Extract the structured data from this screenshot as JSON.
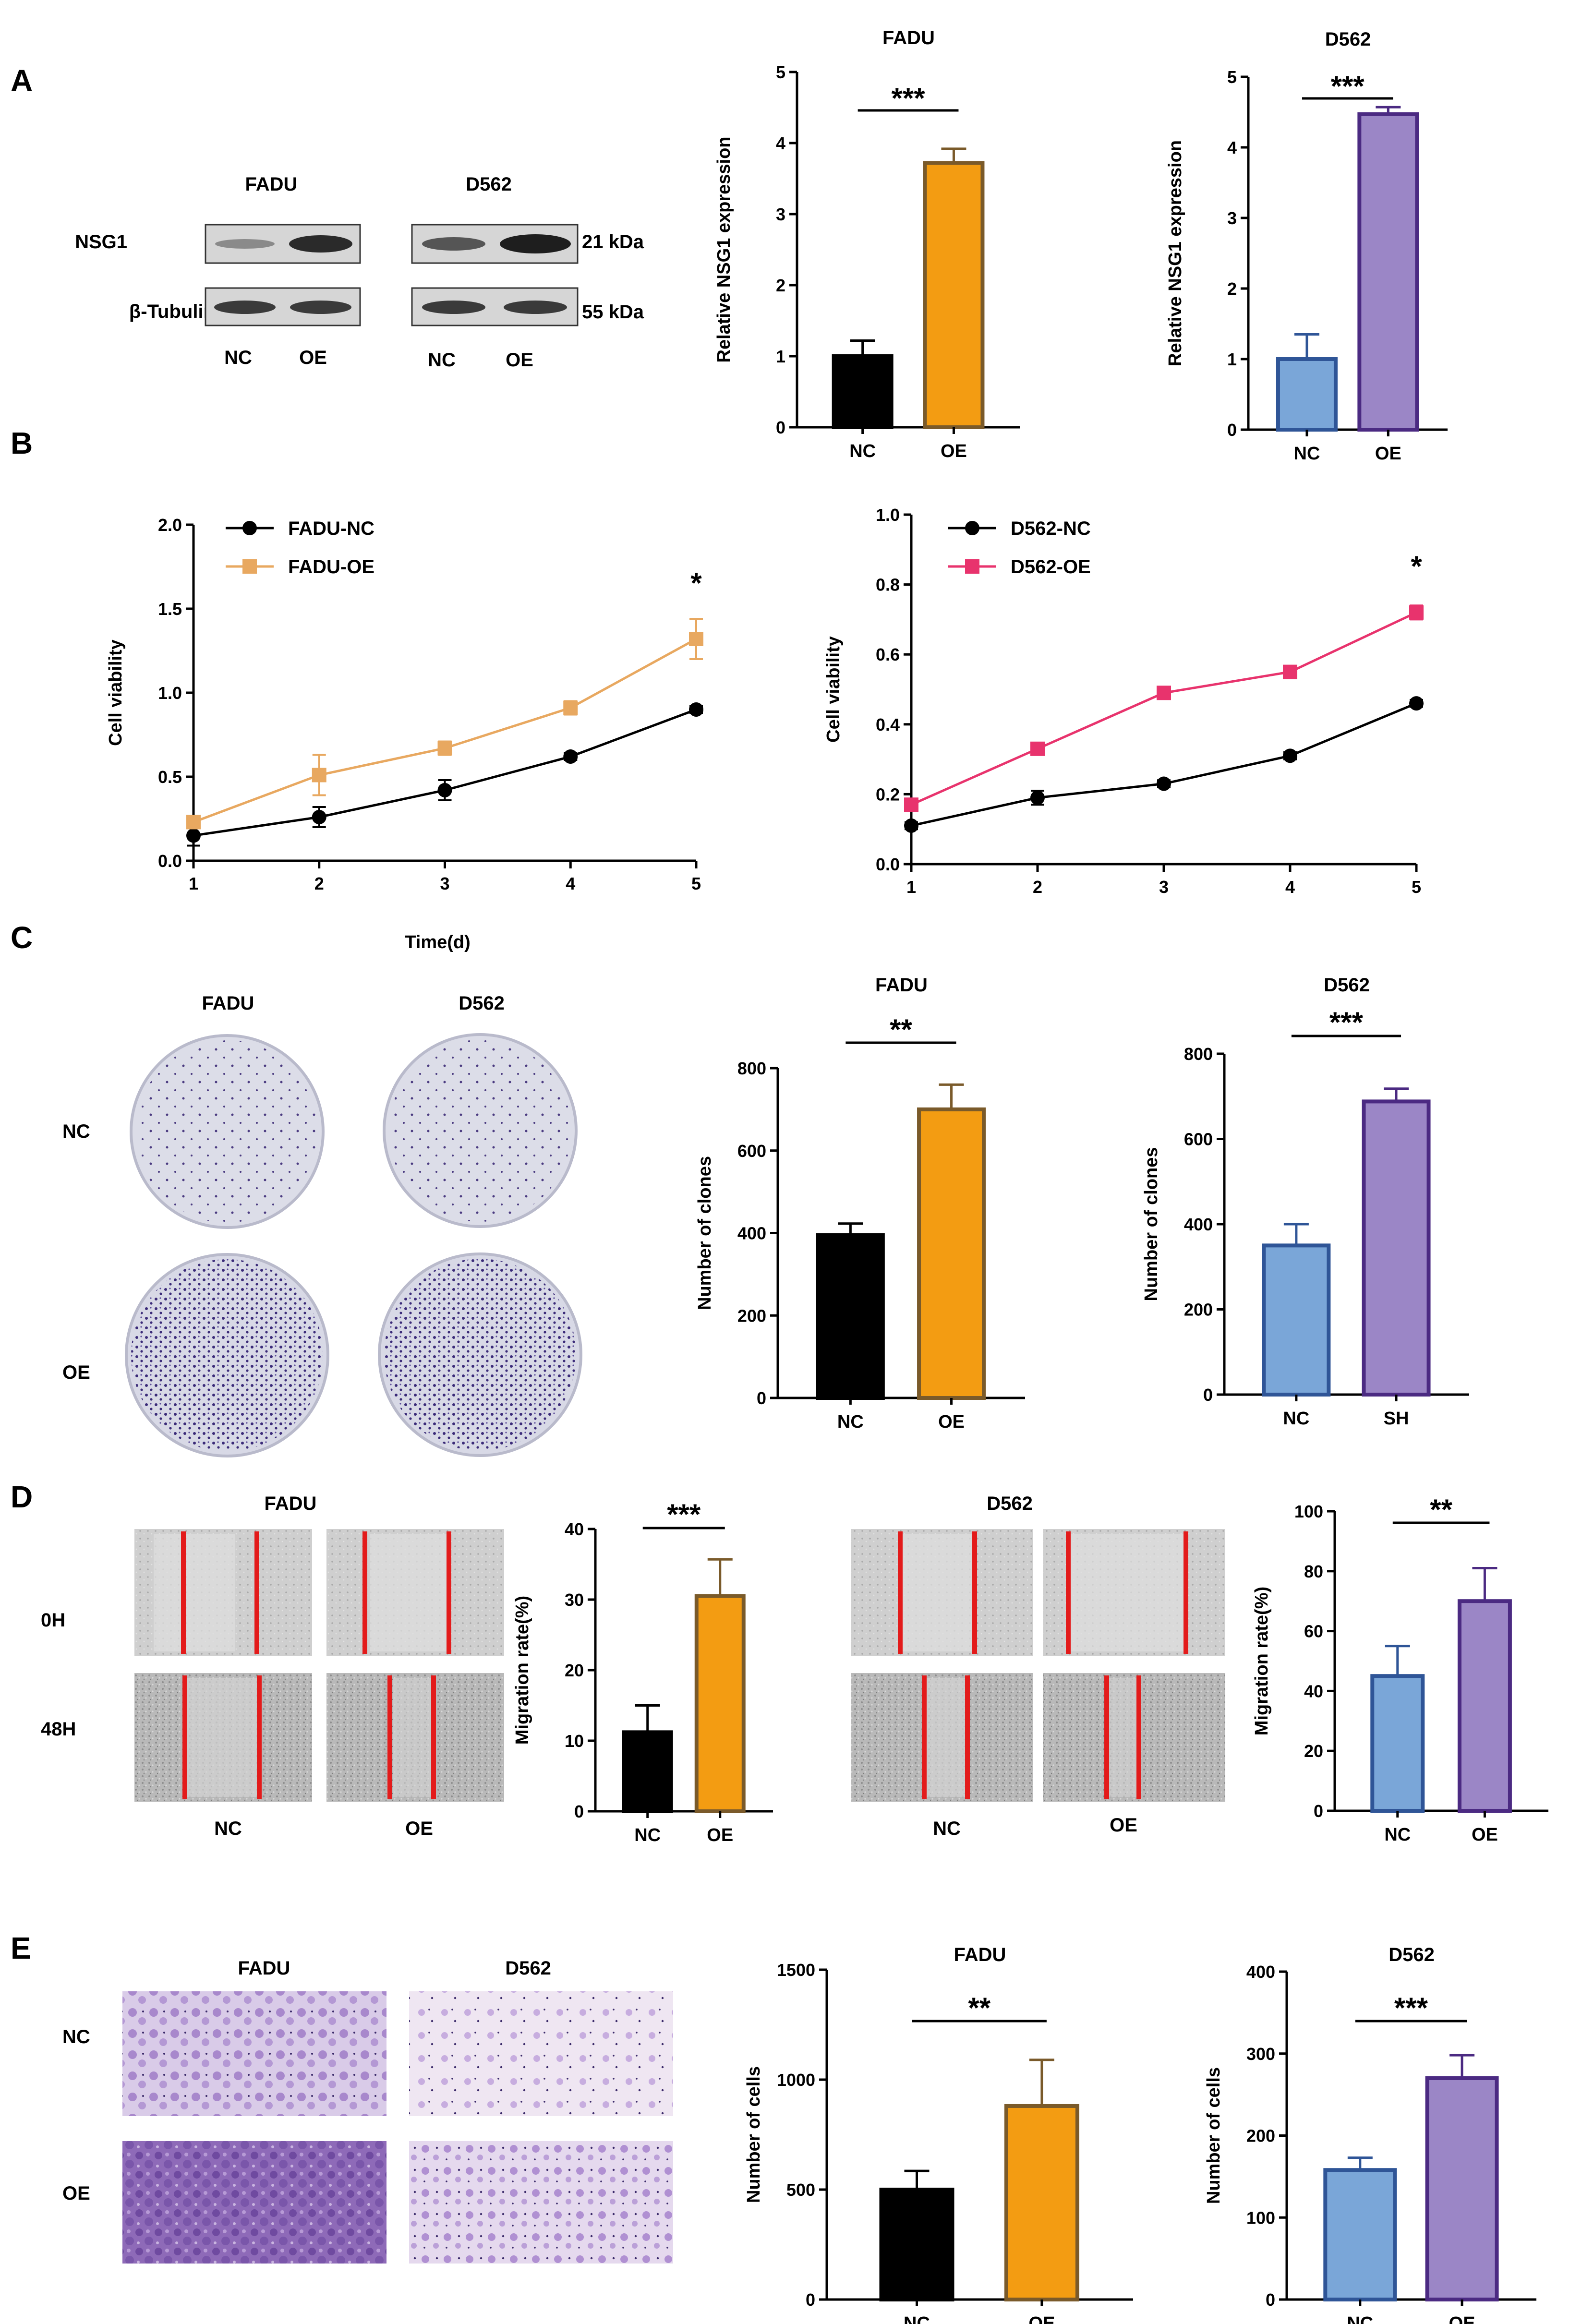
{
  "panels": {
    "A": "A",
    "B": "B",
    "C": "C",
    "D": "D",
    "E": "E"
  },
  "western_blot": {
    "lanes_left_title": "FADU",
    "lanes_right_title": "D562",
    "rows": [
      "NSG1",
      "β-Tubulin"
    ],
    "sizes": [
      "21 kDa",
      "55 kDa"
    ],
    "lane_labels": [
      "NC",
      "OE"
    ]
  },
  "images": {
    "colony": {
      "col_titles": [
        "FADU",
        "D562"
      ],
      "row_labels": [
        "NC",
        "OE"
      ]
    },
    "wound_fadu": {
      "title": "FADU",
      "row_labels": [
        "0H",
        "48H"
      ],
      "col_labels": [
        "NC",
        "OE"
      ]
    },
    "wound_d562": {
      "title": "D562",
      "col_labels": [
        "NC",
        "OE"
      ]
    },
    "transwell": {
      "col_titles": [
        "FADU",
        "D562"
      ],
      "row_labels": [
        "NC",
        "OE"
      ]
    }
  },
  "colors": {
    "black": "#000000",
    "orange": "#f39c12",
    "blue": "#7aa6d8",
    "blue_edge": "#2f5597",
    "purple": "#9b86c6",
    "purple_edge": "#4b2a82",
    "tan": "#e8a860",
    "pink": "#e8336d",
    "orange_edge": "#7a5a2a"
  },
  "chart_data": [
    {
      "id": "a1",
      "type": "bar",
      "title": "FADU",
      "ylabel": "Relative NSG1 expression",
      "categories": [
        "NC",
        "OE"
      ],
      "values": [
        1.0,
        3.72
      ],
      "errors": [
        0.22,
        0.2
      ],
      "ylim": [
        0,
        5
      ],
      "yticks": [
        "0",
        "1",
        "2",
        "3",
        "4",
        "5"
      ],
      "significance": "***"
    },
    {
      "id": "a2",
      "type": "bar",
      "title": "D562",
      "ylabel": "Relative NSG1 expression",
      "categories": [
        "NC",
        "OE"
      ],
      "values": [
        1.0,
        4.47
      ],
      "errors": [
        0.35,
        0.1
      ],
      "ylim": [
        0,
        5
      ],
      "yticks": [
        "0",
        "1",
        "2",
        "3",
        "4",
        "5"
      ],
      "significance": "***"
    },
    {
      "id": "b1",
      "type": "line",
      "title": "",
      "xlabel": "Time(d)",
      "ylabel": "Cell viability",
      "x": [
        1,
        2,
        3,
        4,
        5
      ],
      "xticks": [
        "1",
        "2",
        "3",
        "4",
        "5"
      ],
      "ylim": [
        0,
        2.0
      ],
      "yticks": [
        "0.0",
        "0.5",
        "1.0",
        "1.5",
        "2.0"
      ],
      "annotation": "*",
      "series": [
        {
          "name": "FADU-NC",
          "values": [
            0.15,
            0.26,
            0.42,
            0.62,
            0.9
          ],
          "errors": [
            0.06,
            0.06,
            0.06,
            0.02,
            0.02
          ]
        },
        {
          "name": "FADU-OE",
          "values": [
            0.23,
            0.51,
            0.67,
            0.91,
            1.32
          ],
          "errors": [
            0.03,
            0.12,
            0.04,
            0.04,
            0.12
          ]
        }
      ]
    },
    {
      "id": "b2",
      "type": "line",
      "title": "",
      "xlabel": "",
      "ylabel": "Cell viability",
      "x": [
        1,
        2,
        3,
        4,
        5
      ],
      "xticks": [
        "1",
        "2",
        "3",
        "4",
        "5"
      ],
      "ylim": [
        0,
        1.0
      ],
      "yticks": [
        "0.0",
        "0.2",
        "0.4",
        "0.6",
        "0.8",
        "1.0"
      ],
      "annotation": "*",
      "series": [
        {
          "name": "D562-NC",
          "values": [
            0.11,
            0.19,
            0.23,
            0.31,
            0.46
          ],
          "errors": [
            0.01,
            0.02,
            0.01,
            0.01,
            0.01
          ]
        },
        {
          "name": "D562-OE",
          "values": [
            0.17,
            0.33,
            0.49,
            0.55,
            0.72
          ],
          "errors": [
            0.01,
            0.01,
            0.01,
            0.01,
            0.02
          ]
        }
      ]
    },
    {
      "id": "c1",
      "type": "bar",
      "title": "FADU",
      "ylabel": "Number of clones",
      "categories": [
        "NC",
        "OE"
      ],
      "values": [
        395,
        700
      ],
      "errors": [
        28,
        60
      ],
      "ylim": [
        0,
        800
      ],
      "yticks": [
        "0",
        "200",
        "400",
        "600",
        "800"
      ],
      "significance": "**"
    },
    {
      "id": "c2",
      "type": "bar",
      "title": "D562",
      "ylabel": "Number of clones",
      "categories": [
        "NC",
        "SH"
      ],
      "values": [
        350,
        688
      ],
      "errors": [
        50,
        30
      ],
      "ylim": [
        0,
        800
      ],
      "yticks": [
        "0",
        "200",
        "400",
        "600",
        "800"
      ],
      "significance": "***"
    },
    {
      "id": "d1",
      "type": "bar",
      "title": "",
      "ylabel": "Migration rate(%)",
      "categories": [
        "NC",
        "OE"
      ],
      "values": [
        11.2,
        30.5
      ],
      "errors": [
        3.8,
        5.2
      ],
      "ylim": [
        0,
        40
      ],
      "yticks": [
        "0",
        "10",
        "20",
        "30",
        "40"
      ],
      "significance": "***"
    },
    {
      "id": "d2",
      "type": "bar",
      "title": "",
      "ylabel": "Migration rate(%)",
      "categories": [
        "NC",
        "OE"
      ],
      "values": [
        45,
        70
      ],
      "errors": [
        10,
        11
      ],
      "ylim": [
        0,
        100
      ],
      "yticks": [
        "0",
        "20",
        "40",
        "60",
        "80",
        "100"
      ],
      "significance": "**"
    },
    {
      "id": "e1",
      "type": "bar",
      "title": "FADU",
      "ylabel": "Number of cells",
      "categories": [
        "NC",
        "OE"
      ],
      "values": [
        500,
        880
      ],
      "errors": [
        85,
        210
      ],
      "ylim": [
        0,
        1500
      ],
      "yticks": [
        "0",
        "500",
        "1000",
        "1500"
      ],
      "significance": "**"
    },
    {
      "id": "e2",
      "type": "bar",
      "title": "D562",
      "ylabel": "Number of cells",
      "categories": [
        "NC",
        "OE"
      ],
      "values": [
        158,
        270
      ],
      "errors": [
        15,
        28
      ],
      "ylim": [
        0,
        400
      ],
      "yticks": [
        "0",
        "100",
        "200",
        "300",
        "400"
      ],
      "significance": "***"
    }
  ]
}
